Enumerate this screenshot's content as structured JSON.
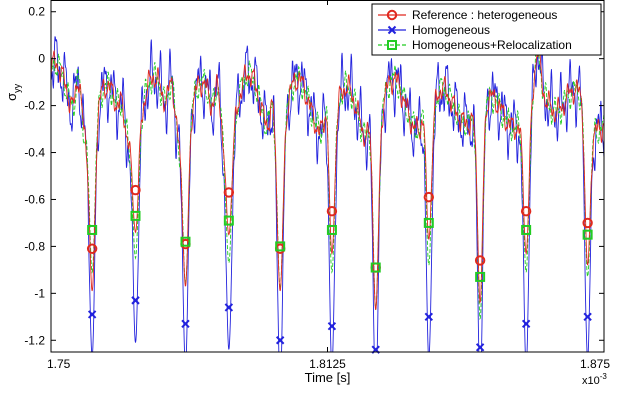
{
  "chart_data": {
    "type": "line",
    "title": "",
    "xlabel": "Time [s]",
    "ylabel": "σyy",
    "ylabel_main": "σ",
    "ylabel_sub": "yy",
    "x_exponent_base": "x10",
    "x_exponent_power": "-3",
    "xlim": [
      1.75,
      1.875
    ],
    "ylim": [
      -1.25,
      0.25
    ],
    "x_ticks": [
      1.75,
      1.8125,
      1.875
    ],
    "x_tick_labels": [
      "1.75",
      "1.8125",
      "1.875"
    ],
    "y_ticks": [
      0.2,
      0,
      -0.2,
      -0.4,
      -0.6,
      -0.8,
      -1,
      -1.2
    ],
    "y_tick_labels": [
      "0.2",
      "0",
      "-0.2",
      "-0.4",
      "-0.6",
      "-0.8",
      "-1",
      "-1.2"
    ],
    "grid": false,
    "legend_position": "top-right",
    "colors": {
      "reference": "#e0281e",
      "homogeneous": "#2222dd",
      "relocalization": "#22cc22"
    },
    "line_params": {
      "baseline_x": [
        1.75,
        1.751,
        1.752,
        1.753,
        1.754,
        1.755,
        1.756,
        1.757,
        1.758,
        1.759,
        1.76
      ],
      "baseline_y": [
        -0.1,
        0.0,
        -0.18,
        -0.05,
        -0.25,
        -0.08,
        -0.3,
        -0.1,
        -0.15,
        0.1,
        -0.2
      ],
      "peak_x": [
        1.7562,
        1.7661,
        1.7773,
        1.7878,
        1.8001,
        1.8126,
        1.8226,
        1.8347,
        1.847,
        1.86,
        1.8705
      ],
      "peak_y": [
        0.19,
        0.06,
        0.18,
        0.17,
        0.12,
        0.14,
        0.09,
        0.1,
        0.13,
        0.15,
        0.02
      ]
    },
    "series": [
      {
        "name": "Reference : heterogeneous",
        "marker": "circle",
        "x": [
          1.7593,
          1.7691,
          1.7804,
          1.7902,
          1.8018,
          1.8135,
          1.8234,
          1.8354,
          1.847,
          1.8574,
          1.8713
        ],
        "y": [
          -0.81,
          -0.56,
          -0.79,
          -0.57,
          -0.81,
          -0.65,
          -0.89,
          -0.59,
          -0.86,
          -0.65,
          -0.7
        ]
      },
      {
        "name": "Homogeneous",
        "marker": "x",
        "x": [
          1.7593,
          1.7691,
          1.7804,
          1.7902,
          1.8018,
          1.8135,
          1.8234,
          1.8354,
          1.847,
          1.8574,
          1.8713
        ],
        "y": [
          -1.09,
          -1.03,
          -1.13,
          -1.06,
          -1.2,
          -1.14,
          -1.24,
          -1.1,
          -1.23,
          -1.13,
          -1.1
        ]
      },
      {
        "name": "Homogeneous+Relocalization",
        "marker": "square",
        "x": [
          1.7593,
          1.7691,
          1.7804,
          1.7902,
          1.8018,
          1.8135,
          1.8234,
          1.8354,
          1.847,
          1.8574,
          1.8713
        ],
        "y": [
          -0.73,
          -0.67,
          -0.78,
          -0.69,
          -0.8,
          -0.73,
          -0.89,
          -0.7,
          -0.93,
          -0.73,
          -0.75
        ]
      }
    ]
  }
}
